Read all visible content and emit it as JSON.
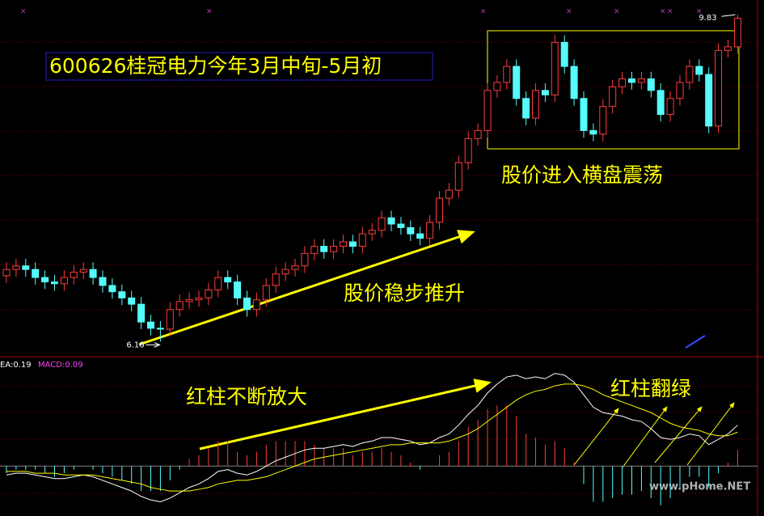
{
  "chart_data": [
    {
      "type": "candlestick",
      "title": "600626桂冠电力今年3月中旬-5月初",
      "open": [
        6.9,
        6.97,
        7.01,
        6.97,
        6.88,
        6.83,
        6.81,
        6.88,
        6.94,
        6.97,
        6.88,
        6.79,
        6.72,
        6.65,
        6.58,
        6.38,
        6.31,
        6.3,
        6.52,
        6.61,
        6.63,
        6.65,
        6.74,
        6.88,
        6.83,
        6.65,
        6.52,
        6.63,
        6.79,
        6.92,
        6.97,
        7.01,
        7.15,
        7.23,
        7.17,
        7.23,
        7.28,
        7.23,
        7.37,
        7.41,
        7.55,
        7.48,
        7.44,
        7.37,
        7.32,
        7.5,
        7.77,
        7.86,
        8.17,
        8.44,
        8.53,
        8.98,
        9.07,
        9.25,
        8.89,
        8.67,
        8.98,
        8.93,
        9.52,
        9.25,
        8.89,
        8.53,
        8.49,
        8.8,
        9.02,
        9.11,
        9.07,
        9.11,
        8.98,
        8.71,
        8.89,
        9.07,
        9.25,
        9.16,
        8.58,
        9.43,
        9.47
      ],
      "high": [
        7.05,
        7.09,
        7.09,
        7.05,
        6.96,
        6.91,
        6.96,
        7.02,
        7.05,
        7.05,
        6.96,
        6.87,
        6.8,
        6.73,
        6.66,
        6.46,
        6.39,
        6.6,
        6.69,
        6.71,
        6.73,
        6.82,
        6.96,
        6.96,
        6.91,
        6.73,
        6.71,
        6.87,
        7.0,
        7.05,
        7.09,
        7.23,
        7.31,
        7.31,
        7.31,
        7.36,
        7.36,
        7.45,
        7.49,
        7.63,
        7.63,
        7.56,
        7.52,
        7.45,
        7.58,
        7.85,
        7.94,
        8.25,
        8.52,
        8.61,
        9.06,
        9.15,
        9.33,
        9.33,
        8.97,
        9.06,
        9.06,
        9.6,
        9.6,
        9.33,
        8.97,
        8.61,
        8.88,
        9.1,
        9.19,
        9.19,
        9.19,
        9.19,
        9.06,
        8.97,
        9.15,
        9.33,
        9.33,
        9.24,
        9.51,
        9.55,
        9.83
      ],
      "low": [
        6.82,
        6.89,
        6.89,
        6.8,
        6.75,
        6.73,
        6.73,
        6.8,
        6.86,
        6.8,
        6.71,
        6.64,
        6.57,
        6.5,
        6.3,
        6.23,
        6.16,
        6.22,
        6.44,
        6.53,
        6.55,
        6.57,
        6.66,
        6.75,
        6.57,
        6.44,
        6.44,
        6.55,
        6.71,
        6.84,
        6.89,
        6.93,
        7.07,
        7.09,
        7.09,
        7.15,
        7.15,
        7.15,
        7.29,
        7.33,
        7.4,
        7.36,
        7.29,
        7.24,
        7.24,
        7.42,
        7.69,
        7.78,
        8.09,
        8.36,
        8.45,
        8.9,
        8.99,
        8.81,
        8.59,
        8.59,
        8.85,
        8.85,
        9.17,
        8.81,
        8.45,
        8.41,
        8.41,
        8.72,
        8.94,
        8.99,
        8.99,
        8.9,
        8.63,
        8.63,
        8.81,
        8.99,
        9.08,
        8.5,
        8.5,
        9.35,
        9.39
      ],
      "close": [
        6.97,
        7.01,
        6.97,
        6.88,
        6.83,
        6.81,
        6.88,
        6.94,
        6.97,
        6.88,
        6.79,
        6.72,
        6.65,
        6.58,
        6.38,
        6.31,
        6.3,
        6.52,
        6.61,
        6.63,
        6.65,
        6.74,
        6.88,
        6.83,
        6.65,
        6.52,
        6.63,
        6.79,
        6.92,
        6.97,
        7.01,
        7.15,
        7.23,
        7.17,
        7.23,
        7.28,
        7.23,
        7.37,
        7.41,
        7.55,
        7.48,
        7.44,
        7.37,
        7.32,
        7.5,
        7.77,
        7.86,
        8.17,
        8.44,
        8.53,
        8.98,
        9.07,
        9.25,
        8.89,
        8.67,
        8.98,
        8.93,
        9.52,
        9.25,
        8.89,
        8.53,
        8.49,
        8.8,
        9.02,
        9.11,
        9.07,
        9.11,
        8.98,
        8.71,
        8.89,
        9.07,
        9.25,
        9.16,
        8.58,
        9.43,
        9.47,
        9.79
      ],
      "up_color": "#ff3c3c",
      "down_color": "#54fcfc",
      "ylim": [
        6.0,
        9.95
      ],
      "annotations": [
        "股价进入横盘震荡",
        "股价稳步推升"
      ]
    },
    {
      "type": "macd",
      "labels": [
        "EA:0.19",
        "MACD:0.09"
      ],
      "dif": {
        "color": "#ffffff",
        "values": [
          -0.05,
          -0.04,
          -0.04,
          -0.05,
          -0.06,
          -0.07,
          -0.07,
          -0.06,
          -0.05,
          -0.06,
          -0.08,
          -0.1,
          -0.12,
          -0.14,
          -0.17,
          -0.19,
          -0.2,
          -0.18,
          -0.15,
          -0.12,
          -0.1,
          -0.07,
          -0.03,
          -0.02,
          -0.04,
          -0.05,
          -0.03,
          0.0,
          0.03,
          0.05,
          0.07,
          0.09,
          0.1,
          0.1,
          0.11,
          0.12,
          0.11,
          0.13,
          0.14,
          0.16,
          0.16,
          0.15,
          0.14,
          0.12,
          0.13,
          0.16,
          0.18,
          0.23,
          0.29,
          0.34,
          0.41,
          0.46,
          0.5,
          0.51,
          0.49,
          0.5,
          0.49,
          0.52,
          0.51,
          0.47,
          0.4,
          0.33,
          0.3,
          0.29,
          0.28,
          0.26,
          0.25,
          0.21,
          0.16,
          0.15,
          0.16,
          0.18,
          0.17,
          0.12,
          0.15,
          0.18,
          0.23
        ]
      },
      "dea": {
        "color": "#ffff00",
        "values": [
          -0.03,
          -0.03,
          -0.03,
          -0.04,
          -0.04,
          -0.04,
          -0.05,
          -0.05,
          -0.05,
          -0.05,
          -0.06,
          -0.07,
          -0.08,
          -0.09,
          -0.1,
          -0.12,
          -0.13,
          -0.14,
          -0.14,
          -0.14,
          -0.13,
          -0.12,
          -0.1,
          -0.09,
          -0.08,
          -0.08,
          -0.07,
          -0.06,
          -0.04,
          -0.02,
          0.0,
          0.02,
          0.04,
          0.05,
          0.06,
          0.07,
          0.08,
          0.09,
          0.1,
          0.11,
          0.12,
          0.12,
          0.13,
          0.13,
          0.13,
          0.13,
          0.14,
          0.16,
          0.18,
          0.21,
          0.25,
          0.29,
          0.33,
          0.37,
          0.4,
          0.42,
          0.43,
          0.45,
          0.46,
          0.46,
          0.45,
          0.43,
          0.4,
          0.38,
          0.36,
          0.34,
          0.32,
          0.3,
          0.27,
          0.24,
          0.22,
          0.21,
          0.2,
          0.18,
          0.17,
          0.17,
          0.19
        ]
      },
      "macd": {
        "up_color": "#ff3c3c",
        "down_color": "#54fcfc",
        "values": [
          -0.04,
          -0.02,
          -0.02,
          -0.02,
          -0.04,
          -0.06,
          -0.04,
          -0.02,
          0.0,
          -0.02,
          -0.04,
          -0.06,
          -0.08,
          -0.1,
          -0.14,
          -0.14,
          -0.14,
          -0.08,
          -0.02,
          0.04,
          0.06,
          0.1,
          0.14,
          0.14,
          0.08,
          0.06,
          0.08,
          0.12,
          0.14,
          0.14,
          0.14,
          0.14,
          0.12,
          0.1,
          0.1,
          0.1,
          0.06,
          0.08,
          0.08,
          0.1,
          0.08,
          0.06,
          0.02,
          -0.02,
          0.0,
          0.06,
          0.08,
          0.14,
          0.22,
          0.26,
          0.32,
          0.34,
          0.34,
          0.28,
          0.18,
          0.16,
          0.12,
          0.14,
          0.1,
          0.02,
          -0.1,
          -0.2,
          -0.2,
          -0.18,
          -0.16,
          -0.16,
          -0.14,
          -0.18,
          -0.22,
          -0.18,
          -0.12,
          -0.06,
          -0.06,
          -0.12,
          -0.04,
          0.02,
          0.09
        ]
      },
      "ylim": [
        -0.28,
        0.6
      ],
      "annotations": [
        "红柱不断放大",
        "红柱翻绿"
      ]
    }
  ],
  "watermark": "www.pHome.NET"
}
